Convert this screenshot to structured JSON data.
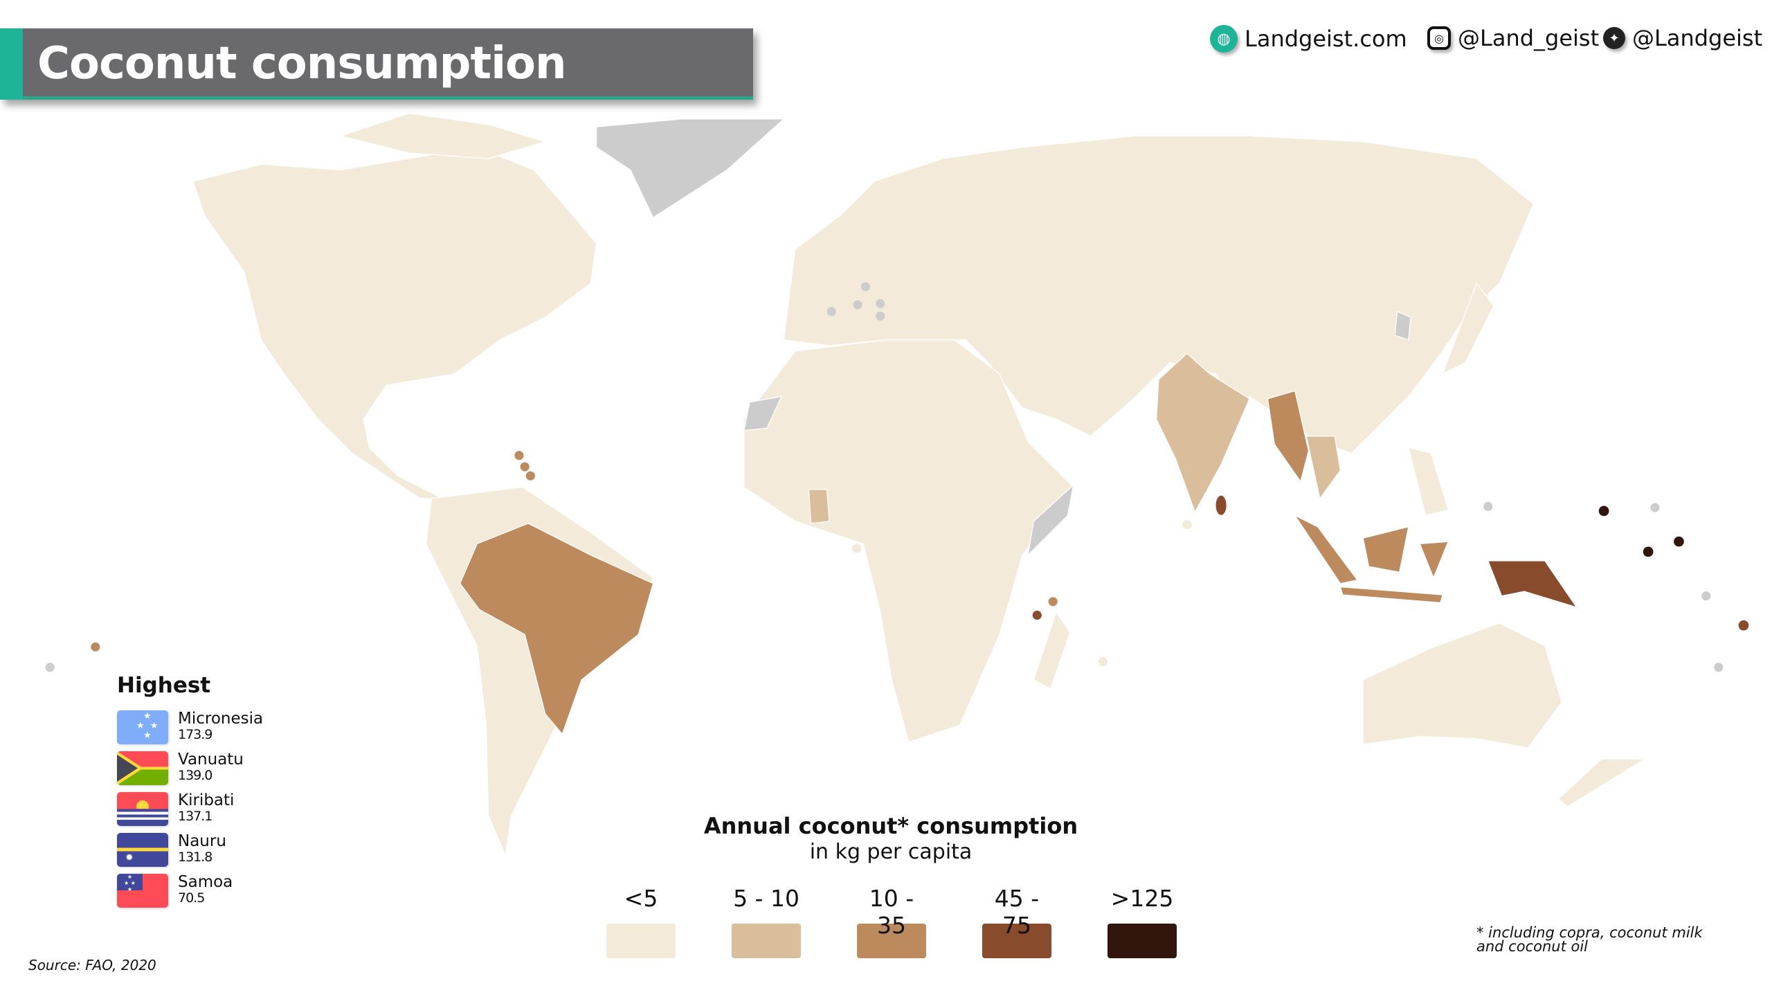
{
  "title": "Coconut consumption",
  "social": {
    "website": "Landgeist.com",
    "instagram": "@Land_geist",
    "twitter": "@Landgeist"
  },
  "highest": {
    "title": "Highest",
    "items": [
      {
        "country": "Micronesia",
        "value": "173.9"
      },
      {
        "country": "Vanuatu",
        "value": "139.0"
      },
      {
        "country": "Kiribati",
        "value": "137.1"
      },
      {
        "country": "Nauru",
        "value": "131.8"
      },
      {
        "country": "Samoa",
        "value": "70.5"
      }
    ]
  },
  "legend": {
    "title": "Annual coconut* consumption",
    "subtitle": "in kg per capita",
    "bins": [
      {
        "label": "<5",
        "color": "#F3EAD9"
      },
      {
        "label": "5 - 10",
        "color": "#DABD9B"
      },
      {
        "label": "10 - 35",
        "color": "#BD8A5D"
      },
      {
        "label": "45 - 75",
        "color": "#884B2B"
      },
      {
        "label": ">125",
        "color": "#32160D"
      }
    ],
    "no_data_color": "#CCCCCC"
  },
  "footnote": {
    "line1": "* including copra, coconut milk",
    "line2": "and coconut oil"
  },
  "source": "Source: FAO, 2020",
  "colors": {
    "accent": "#1EB497",
    "title_bar": "#6A6A6C"
  }
}
